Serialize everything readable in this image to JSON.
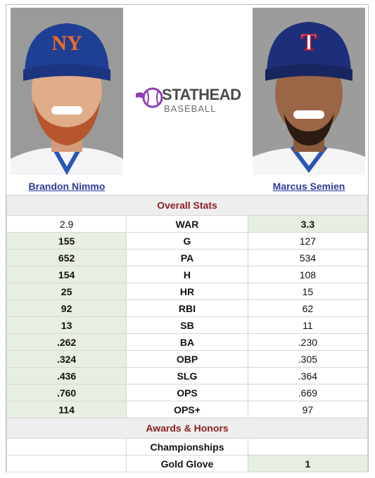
{
  "players": {
    "left": {
      "name": "Brandon Nimmo",
      "cap_letters": "NY",
      "cap_color": "#1f3f94",
      "logo_color": "#f26b22"
    },
    "right": {
      "name": "Marcus Semien",
      "cap_letters": "T",
      "cap_color": "#1d2f7a",
      "logo_color": "#c1132d"
    }
  },
  "logo": {
    "word1": "STATHEAD",
    "word2": "BASEBALL",
    "icon": "baseball-icon",
    "accent": "#8e3fb5"
  },
  "sections": {
    "overall": "Overall Stats",
    "awards": "Awards & Honors"
  },
  "stats": [
    {
      "label": "WAR",
      "left": "2.9",
      "right": "3.3",
      "winner": "right"
    },
    {
      "label": "G",
      "left": "155",
      "right": "127",
      "winner": "left"
    },
    {
      "label": "PA",
      "left": "652",
      "right": "534",
      "winner": "left"
    },
    {
      "label": "H",
      "left": "154",
      "right": "108",
      "winner": "left"
    },
    {
      "label": "HR",
      "left": "25",
      "right": "15",
      "winner": "left"
    },
    {
      "label": "RBI",
      "left": "92",
      "right": "62",
      "winner": "left"
    },
    {
      "label": "SB",
      "left": "13",
      "right": "11",
      "winner": "left"
    },
    {
      "label": "BA",
      "left": ".262",
      "right": ".230",
      "winner": "left"
    },
    {
      "label": "OBP",
      "left": ".324",
      "right": ".305",
      "winner": "left"
    },
    {
      "label": "SLG",
      "left": ".436",
      "right": ".364",
      "winner": "left"
    },
    {
      "label": "OPS",
      "left": ".760",
      "right": ".669",
      "winner": "left"
    },
    {
      "label": "OPS+",
      "left": "114",
      "right": "97",
      "winner": "left"
    }
  ],
  "awards": [
    {
      "label": "Championships",
      "left": "",
      "right": "",
      "winner": "none"
    },
    {
      "label": "Gold Glove",
      "left": "",
      "right": "1",
      "winner": "right"
    }
  ]
}
